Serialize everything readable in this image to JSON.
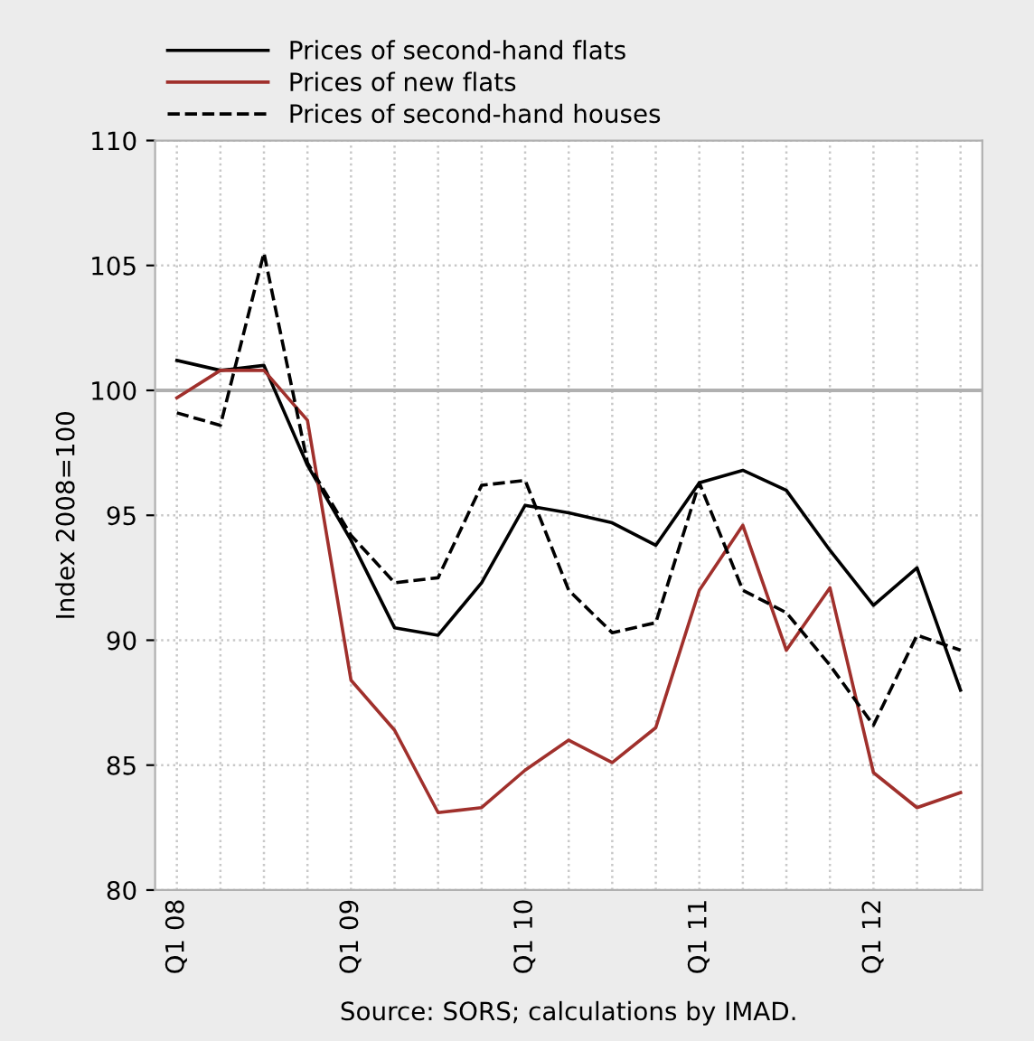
{
  "chart_data": {
    "type": "line",
    "ylabel": "Index 2008=100",
    "categories": [
      "Q1 08",
      null,
      null,
      null,
      "Q1 09",
      null,
      null,
      null,
      "Q1 10",
      null,
      null,
      null,
      "Q1 11",
      null,
      null,
      null,
      "Q1 12",
      null,
      null
    ],
    "series": [
      {
        "name": "Prices of second-hand flats",
        "color": "#000000",
        "line_style": "solid",
        "values": [
          101.2,
          100.8,
          101.0,
          97.0,
          94.0,
          90.5,
          90.2,
          92.3,
          95.4,
          95.1,
          94.7,
          93.8,
          96.3,
          96.8,
          96.0,
          93.6,
          91.4,
          92.9,
          88.0
        ]
      },
      {
        "name": "Prices of new flats",
        "color": "#a0302c",
        "line_style": "solid",
        "values": [
          99.7,
          100.8,
          100.8,
          98.8,
          88.4,
          86.4,
          83.1,
          83.3,
          84.8,
          86.0,
          85.1,
          86.5,
          92.0,
          94.6,
          89.6,
          92.1,
          84.7,
          83.3,
          83.9
        ]
      },
      {
        "name": "Prices of second-hand houses",
        "color": "#000000",
        "line_style": "dashed",
        "values": [
          99.1,
          98.6,
          105.5,
          97.1,
          94.2,
          92.3,
          92.5,
          96.2,
          96.4,
          92.0,
          90.3,
          90.7,
          96.3,
          92.0,
          91.1,
          89.0,
          86.6,
          90.2,
          89.6
        ]
      }
    ],
    "ylim": [
      80,
      110
    ],
    "yticks": [
      80,
      85,
      90,
      95,
      100,
      105,
      110
    ],
    "ref_lines": [
      {
        "axis": "y",
        "value": 100,
        "color": "#b0b0b0",
        "line_style": "solid"
      }
    ],
    "grid": true,
    "legend": "top left",
    "annotations": [
      "Source: SORS; calculations by IMAD."
    ]
  }
}
